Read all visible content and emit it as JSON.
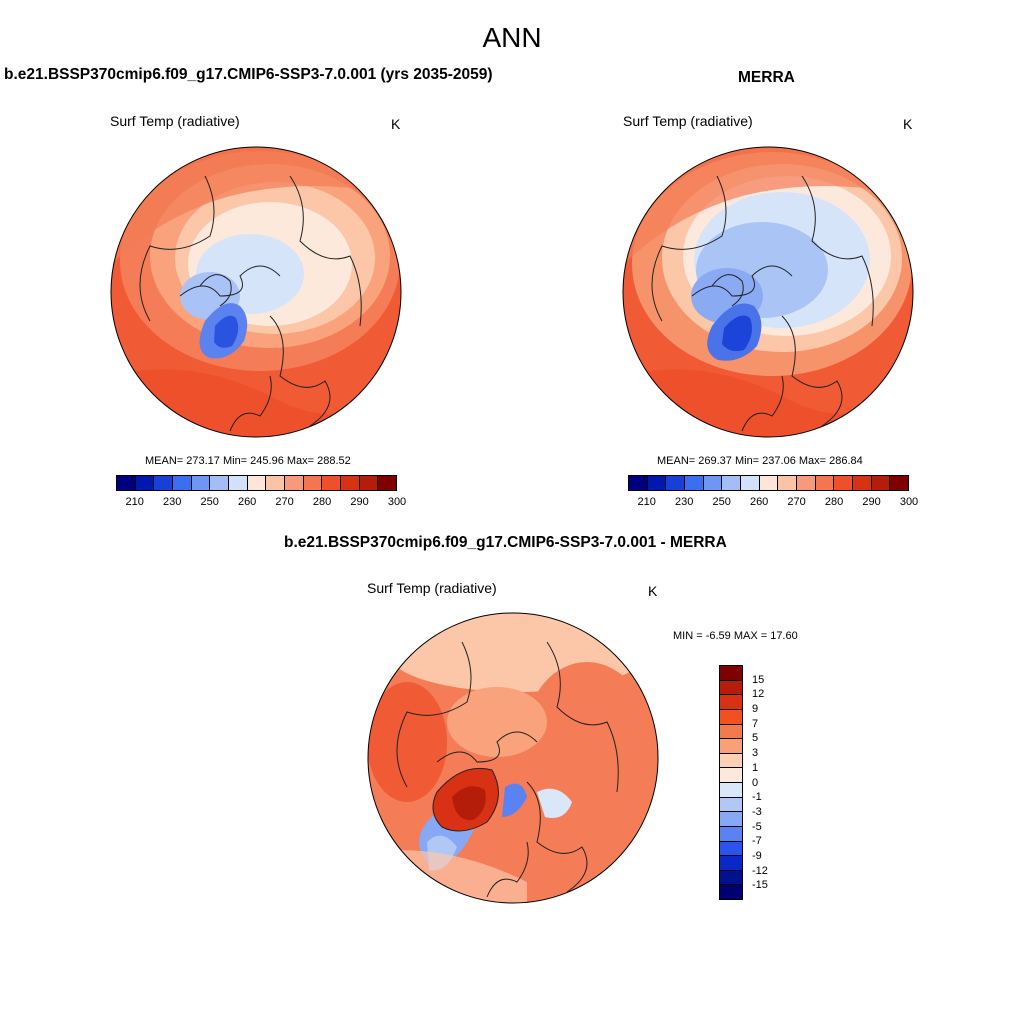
{
  "figure_title": "ANN",
  "panels": {
    "model": {
      "title": "b.e21.BSSP370cmip6.f09_g17.CMIP6-SSP3-7.0.001 (yrs 2035-2059)",
      "variable": "Surf Temp (radiative)",
      "units": "K",
      "stats": "MEAN= 273.17  Min= 245.96  Max= 288.52",
      "mean": 273.17,
      "min": 245.96,
      "max": 288.52
    },
    "obs": {
      "title": "MERRA",
      "variable": "Surf Temp (radiative)",
      "units": "K",
      "stats": "MEAN= 269.37  Min= 237.06  Max= 286.84",
      "mean": 269.37,
      "min": 237.06,
      "max": 286.84
    },
    "diff": {
      "title": "b.e21.BSSP370cmip6.f09_g17.CMIP6-SSP3-7.0.001 - MERRA",
      "variable": "Surf Temp (radiative)",
      "units": "K",
      "stats": "MIN =  -6.59 MAX =  17.60",
      "min": -6.59,
      "max": 17.6
    }
  },
  "abs_colorbar": {
    "colors": [
      "#00007f",
      "#0018b0",
      "#1840d8",
      "#3c6ef0",
      "#6e97f5",
      "#a3bdf7",
      "#d1e1fa",
      "#fde6d8",
      "#fbc3a5",
      "#f7997a",
      "#f47454",
      "#ef4f2a",
      "#d93114",
      "#b41d0a",
      "#7f0000"
    ],
    "tick_labels": [
      "210",
      "230",
      "250",
      "260",
      "270",
      "280",
      "290",
      "300"
    ]
  },
  "diff_colorbar": {
    "colors": [
      "#7f0000",
      "#b41d0a",
      "#d93114",
      "#f05022",
      "#f47a4c",
      "#f9a078",
      "#fdd0b4",
      "#fde9dc",
      "#dae7fa",
      "#b1c8f7",
      "#87a8f4",
      "#5a82f2",
      "#2a54ea",
      "#0a28c8",
      "#00118f",
      "#000070"
    ],
    "tick_labels": [
      "15",
      "12",
      "9",
      "7",
      "5",
      "3",
      "1",
      "0",
      "-1",
      "-3",
      "-5",
      "-7",
      "-9",
      "-12",
      "-15"
    ]
  }
}
